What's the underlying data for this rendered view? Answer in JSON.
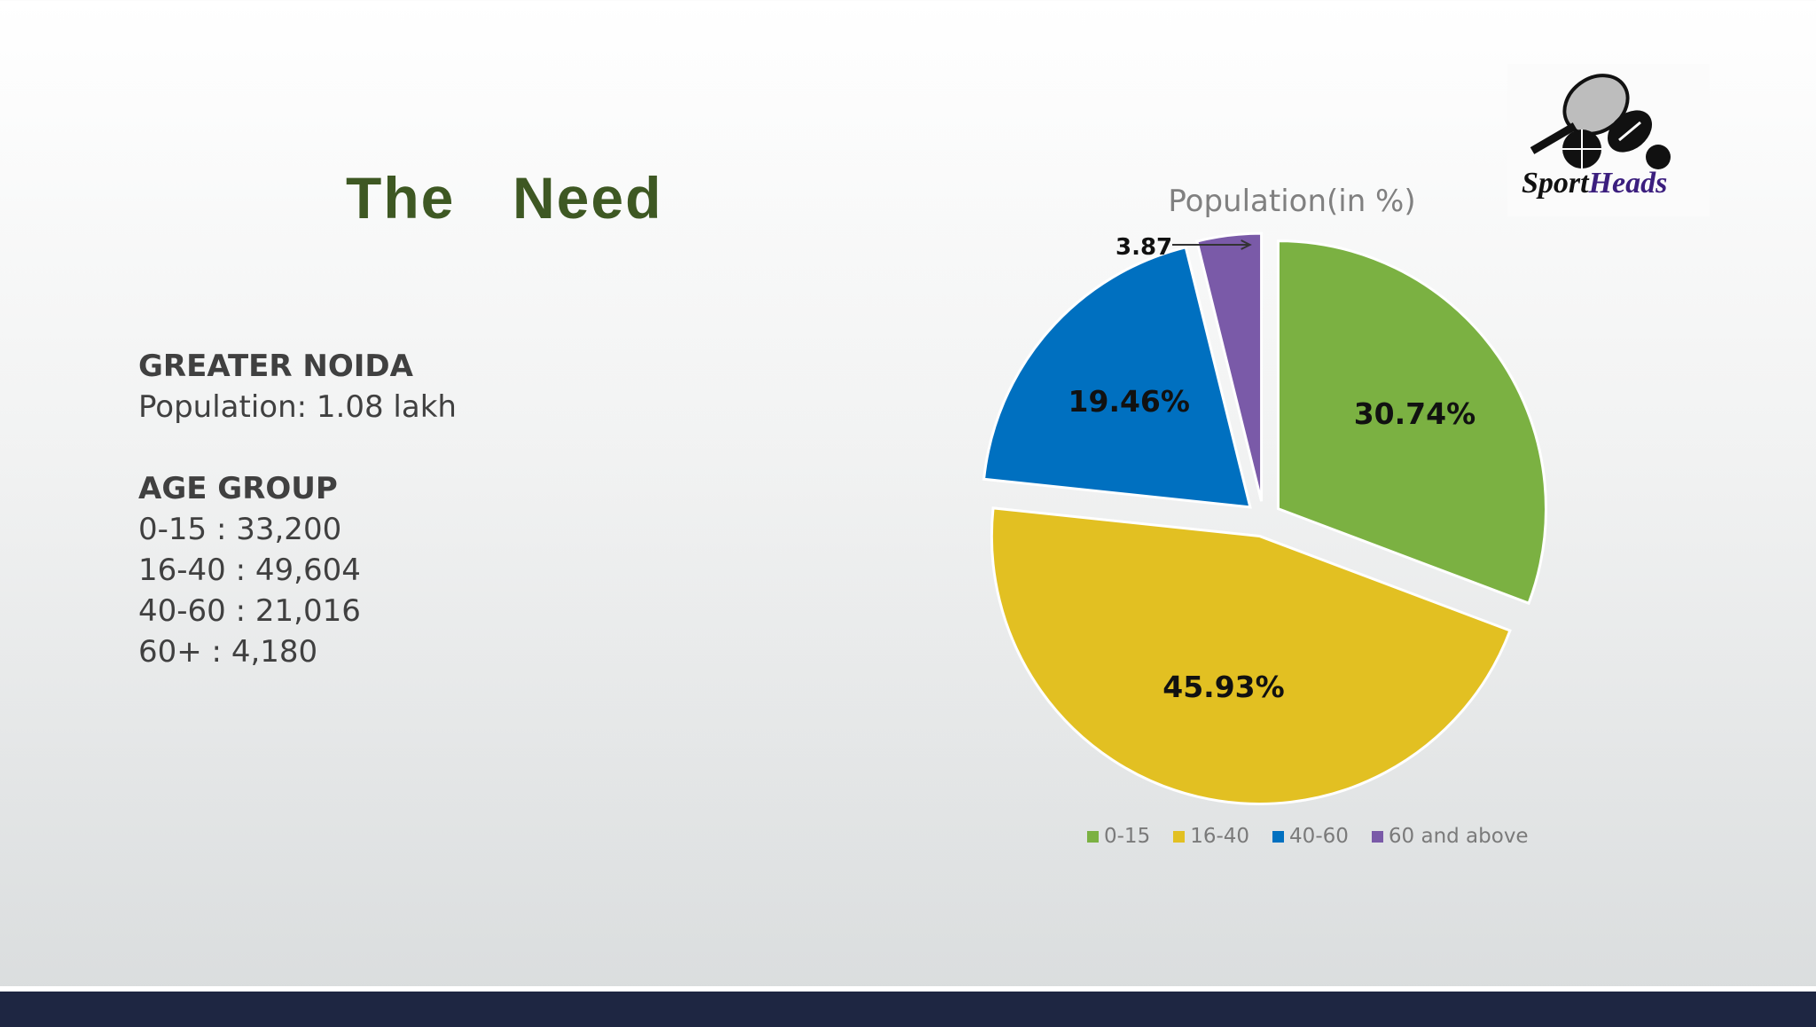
{
  "slide": {
    "title": "The  Need",
    "location_heading": "GREATER NOIDA",
    "population_line": "Population: 1.08 lakh",
    "age_heading": "AGE GROUP",
    "age_lines": [
      "0-15 : 33,200",
      "16-40 : 49,604",
      "40-60 : 21,016",
      "60+ : 4,180"
    ]
  },
  "logo": {
    "text_a": "Sport",
    "text_b": "Heads",
    "icon_name": "sports-balls-racket-icon"
  },
  "colors": {
    "title": "#3e5823",
    "footer": "#1e2642"
  },
  "chart_data": {
    "type": "pie",
    "title": "Population(in %)",
    "categories": [
      "0-15",
      "16-40",
      "40-60",
      "60 and above"
    ],
    "values": [
      30.74,
      45.93,
      19.46,
      3.87
    ],
    "data_labels": [
      "30.74%",
      "45.93%",
      "19.46%",
      "3.87"
    ],
    "colors": [
      "#7bb142",
      "#e2c022",
      "#0070c0",
      "#7a5aa8"
    ],
    "exploded": true,
    "legend_position": "bottom"
  }
}
